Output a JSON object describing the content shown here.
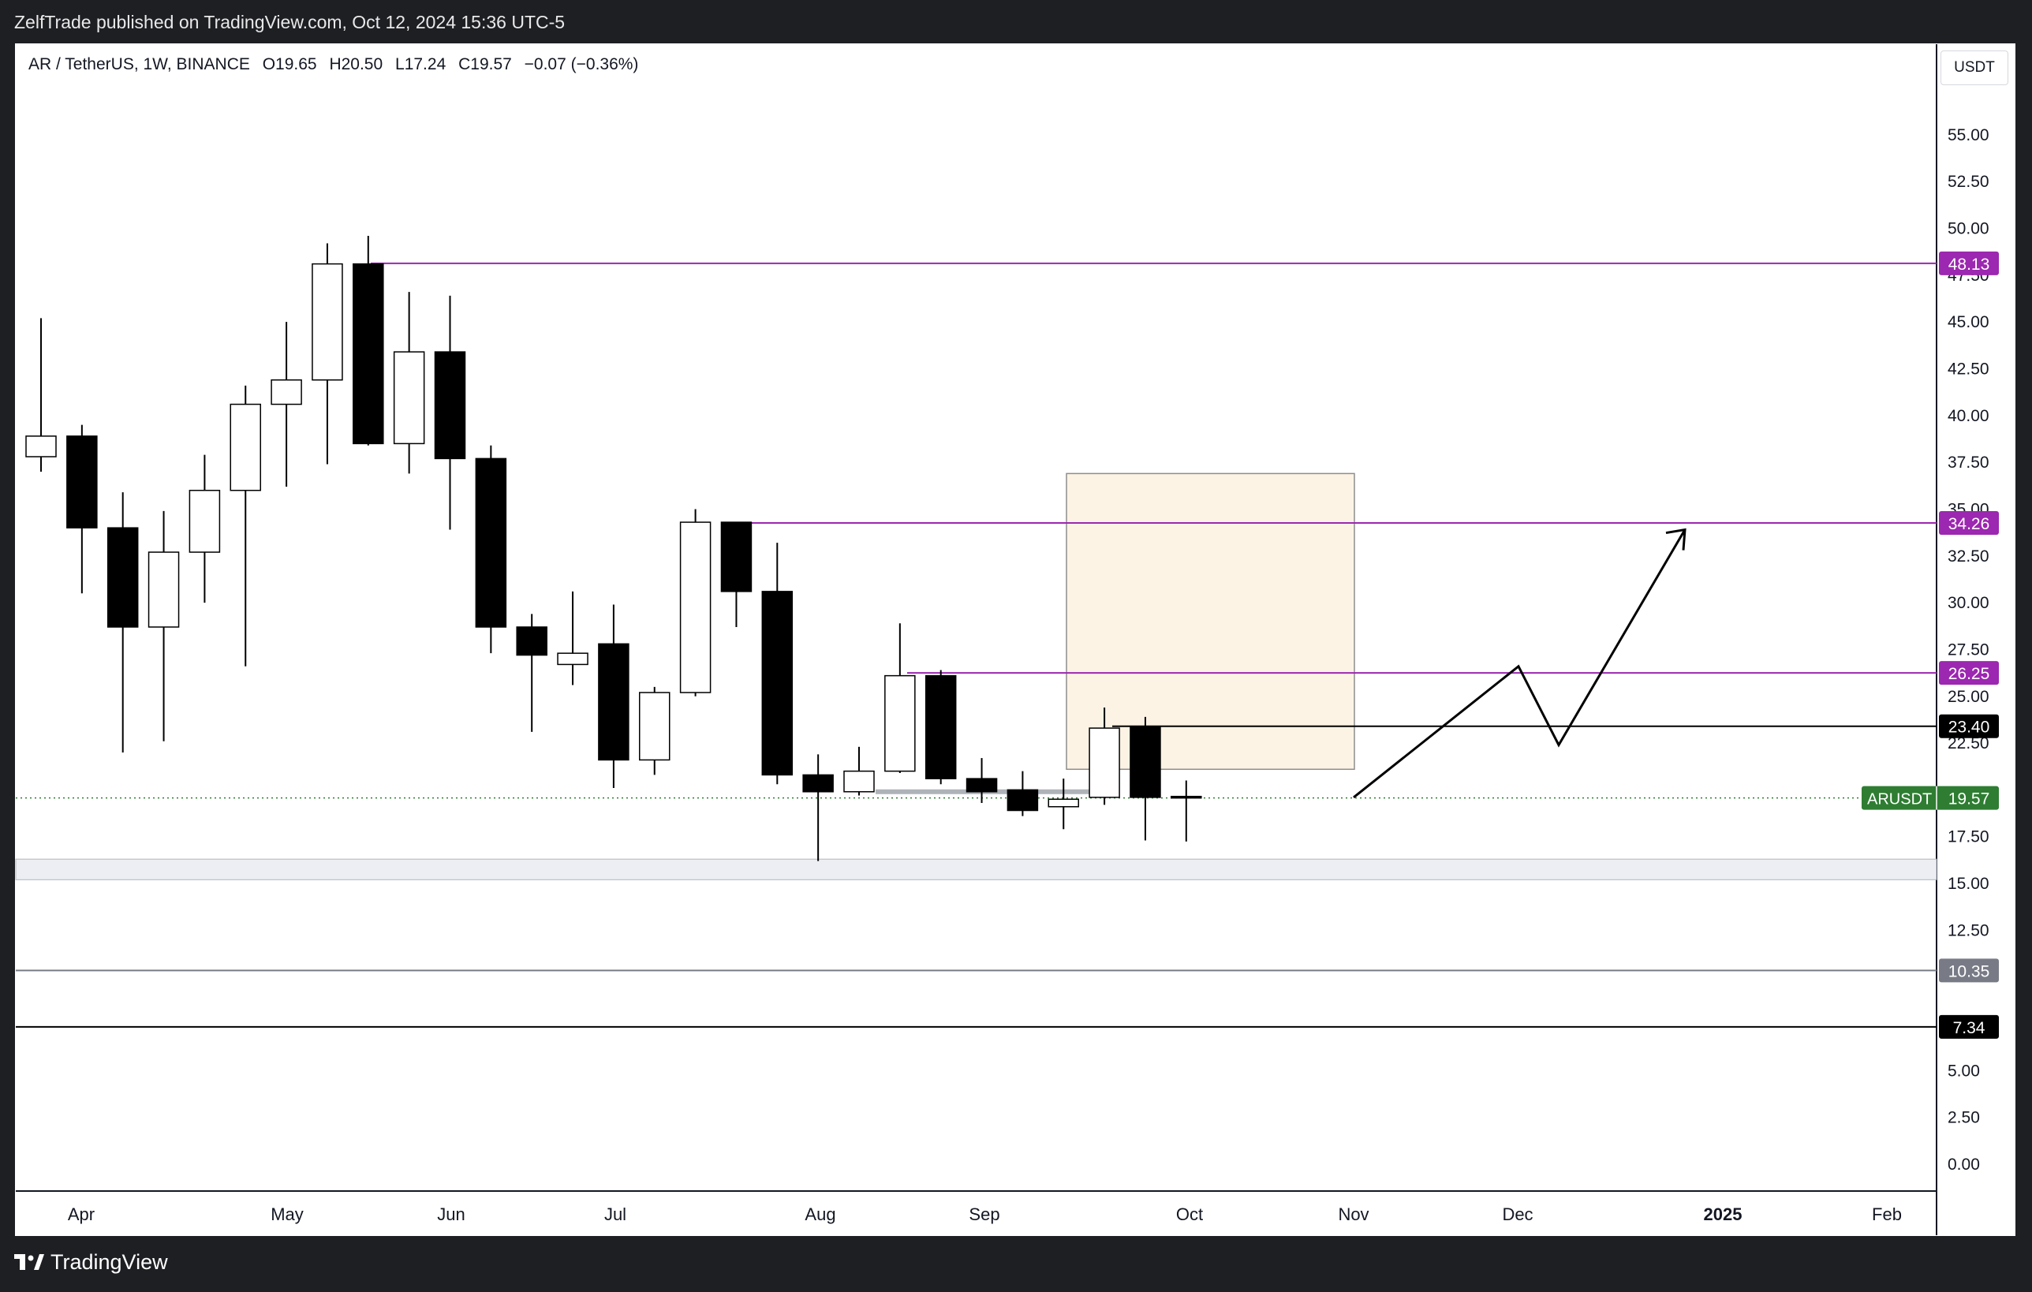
{
  "header": {
    "published": "ZelfTrade published on TradingView.com, Oct 12, 2024 15:36 UTC-5"
  },
  "legend": {
    "symbol": "AR / TetherUS, 1W, BINANCE",
    "open": "O19.65",
    "high": "H20.50",
    "low": "L17.24",
    "close": "C19.57",
    "change": "−0.07 (−0.36%)"
  },
  "currency_button": "USDT",
  "footer": {
    "brand": "TradingView"
  },
  "colors": {
    "up": "#ffffff",
    "down": "#000000",
    "level": "#9c27b0",
    "box": "#fdf3e5",
    "current": "#2e7d32"
  },
  "chart_data": {
    "type": "candlestick",
    "symbol": "ARUSDT",
    "interval": "1W",
    "y_range": [
      -2,
      58
    ],
    "y_ticks": [
      "0.00",
      "2.50",
      "5.00",
      "12.50",
      "15.00",
      "17.50",
      "22.50",
      "25.00",
      "27.50",
      "30.00",
      "32.50",
      "35.00",
      "37.50",
      "40.00",
      "42.50",
      "45.00",
      "47.50",
      "50.00",
      "52.50",
      "55.00"
    ],
    "x_labels": [
      "Apr",
      "May",
      "Jun",
      "Jul",
      "Aug",
      "Sep",
      "Oct",
      "Nov",
      "Dec",
      "2025",
      "Feb"
    ],
    "candles": [
      {
        "o": 37.8,
        "h": 45.2,
        "l": 37.0,
        "c": 38.9
      },
      {
        "o": 38.9,
        "h": 39.5,
        "l": 30.5,
        "c": 34.0
      },
      {
        "o": 34.0,
        "h": 35.9,
        "l": 22.0,
        "c": 28.7
      },
      {
        "o": 28.7,
        "h": 34.9,
        "l": 22.6,
        "c": 32.7
      },
      {
        "o": 32.7,
        "h": 37.9,
        "l": 30.0,
        "c": 36.0
      },
      {
        "o": 36.0,
        "h": 41.6,
        "l": 26.6,
        "c": 40.6
      },
      {
        "o": 40.6,
        "h": 45.0,
        "l": 36.2,
        "c": 41.9
      },
      {
        "o": 41.9,
        "h": 49.2,
        "l": 37.4,
        "c": 48.1
      },
      {
        "o": 48.1,
        "h": 49.6,
        "l": 38.4,
        "c": 38.5
      },
      {
        "o": 38.5,
        "h": 46.6,
        "l": 36.9,
        "c": 43.4
      },
      {
        "o": 43.4,
        "h": 46.4,
        "l": 33.9,
        "c": 37.7
      },
      {
        "o": 37.7,
        "h": 38.4,
        "l": 27.3,
        "c": 28.7
      },
      {
        "o": 28.7,
        "h": 29.4,
        "l": 23.1,
        "c": 27.2
      },
      {
        "o": 26.7,
        "h": 30.6,
        "l": 25.6,
        "c": 27.3
      },
      {
        "o": 27.8,
        "h": 29.9,
        "l": 20.1,
        "c": 21.6
      },
      {
        "o": 21.6,
        "h": 25.5,
        "l": 20.8,
        "c": 25.2
      },
      {
        "o": 25.2,
        "h": 35.0,
        "l": 25.0,
        "c": 34.3
      },
      {
        "o": 34.3,
        "h": 34.3,
        "l": 28.7,
        "c": 30.6
      },
      {
        "o": 30.6,
        "h": 33.2,
        "l": 20.3,
        "c": 20.8
      },
      {
        "o": 20.8,
        "h": 21.9,
        "l": 16.2,
        "c": 19.9
      },
      {
        "o": 19.9,
        "h": 22.3,
        "l": 19.7,
        "c": 21.0
      },
      {
        "o": 21.0,
        "h": 28.9,
        "l": 20.9,
        "c": 26.1
      },
      {
        "o": 26.1,
        "h": 26.4,
        "l": 20.3,
        "c": 20.6
      },
      {
        "o": 20.6,
        "h": 21.7,
        "l": 19.3,
        "c": 19.9
      },
      {
        "o": 20.0,
        "h": 21.0,
        "l": 18.6,
        "c": 18.9
      },
      {
        "o": 19.1,
        "h": 20.6,
        "l": 17.9,
        "c": 19.5
      },
      {
        "o": 19.6,
        "h": 24.4,
        "l": 19.2,
        "c": 23.3
      },
      {
        "o": 23.4,
        "h": 23.9,
        "l": 17.3,
        "c": 19.6
      },
      {
        "o": 19.65,
        "h": 20.5,
        "l": 17.24,
        "c": 19.57
      }
    ],
    "levels": [
      {
        "price": 48.13,
        "label": "48.13",
        "color": "#9c27b0"
      },
      {
        "price": 34.26,
        "label": "34.26",
        "color": "#9c27b0"
      },
      {
        "price": 26.25,
        "label": "26.25",
        "color": "#9c27b0"
      },
      {
        "price": 23.4,
        "label": "23.40",
        "color": "#000000"
      },
      {
        "price": 10.35,
        "label": "10.35",
        "color": "#787b86"
      },
      {
        "price": 7.34,
        "label": "7.34",
        "color": "#000000"
      }
    ],
    "current": {
      "name": "ARUSDT",
      "price": 19.57,
      "label": "19.57"
    },
    "support_zone": [
      15.2,
      16.3
    ],
    "target_box": {
      "price_top": 36.9,
      "price_bottom": 21.1
    },
    "projection_path": [
      19.6,
      26.6,
      22.4,
      33.9
    ]
  }
}
